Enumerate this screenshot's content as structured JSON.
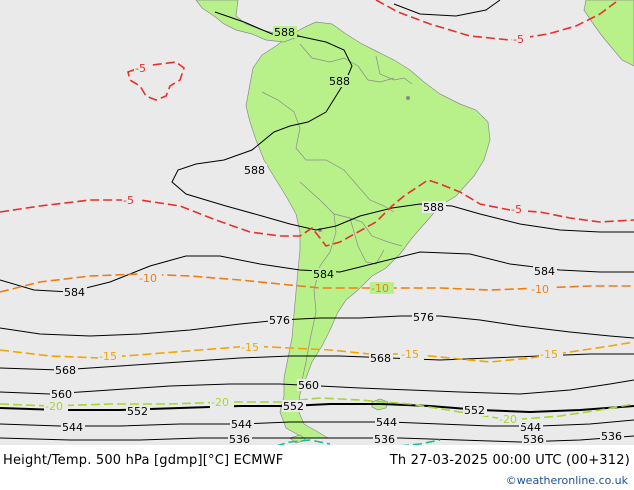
{
  "title": "Height/Temp. 500 hPa [gdmp][°C] ECMWF",
  "valid_time": "Th 27-03-2025 00:00 UTC (00+312)",
  "credit": "©weatheronline.co.uk",
  "colors": {
    "ocean": "#eaeaea",
    "land": "#b8f08a",
    "height_contour": "#000000",
    "temp_minus5": "#e8302c",
    "temp_minus10": "#ef7d16",
    "temp_minus15": "#f2a500",
    "temp_minus20": "#a8d62e",
    "temp_minus25": "#18c08a"
  },
  "height_labels": [
    "588",
    "588",
    "588",
    "588",
    "584",
    "584",
    "584",
    "576",
    "576",
    "568",
    "568",
    "560",
    "560",
    "552",
    "552",
    "552",
    "544",
    "544",
    "544",
    "544",
    "536",
    "536",
    "536",
    "536"
  ],
  "temp_labels": [
    "-5",
    "-5",
    "-5",
    "-5",
    "-10",
    "-10",
    "-10",
    "-15",
    "-15",
    "-15",
    "-15",
    "-20",
    "-20",
    "-20"
  ]
}
